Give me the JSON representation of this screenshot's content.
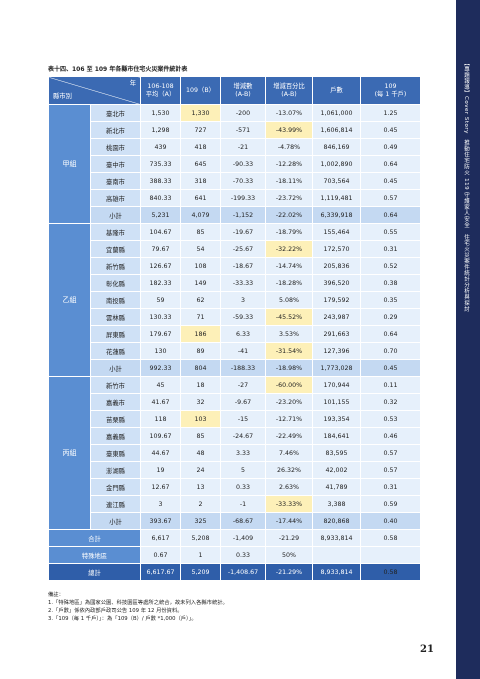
{
  "title": "表十四、106 至 109 年各縣市住宅火災案件統計表",
  "table": {
    "header": {
      "corner_top": "年",
      "corner_bottom": "縣市別",
      "columns": [
        [
          "106-108",
          "平均（A）"
        ],
        [
          "109（B）"
        ],
        [
          "增減數",
          "(A-B)"
        ],
        [
          "增減百分比",
          "(A-B)"
        ],
        [
          "戶數"
        ],
        [
          "109",
          "(每 1 千戶)"
        ]
      ]
    },
    "groups": [
      {
        "name": "甲組",
        "rows": [
          {
            "name": "臺北市",
            "cells": [
              "1,530",
              "1,330",
              "-200",
              "-13.07%",
              "1,061,000",
              "1.25"
            ],
            "highlight": [
              1
            ]
          },
          {
            "name": "新北市",
            "cells": [
              "1,298",
              "727",
              "-571",
              "-43.99%",
              "1,606,814",
              "0.45"
            ],
            "highlight": [
              3
            ]
          },
          {
            "name": "桃園市",
            "cells": [
              "439",
              "418",
              "-21",
              "-4.78%",
              "846,169",
              "0.49"
            ],
            "highlight": []
          },
          {
            "name": "臺中市",
            "cells": [
              "735.33",
              "645",
              "-90.33",
              "-12.28%",
              "1,002,890",
              "0.64"
            ],
            "highlight": []
          },
          {
            "name": "臺南市",
            "cells": [
              "388.33",
              "318",
              "-70.33",
              "-18.11%",
              "703,564",
              "0.45"
            ],
            "highlight": []
          },
          {
            "name": "高雄市",
            "cells": [
              "840.33",
              "641",
              "-199.33",
              "-23.72%",
              "1,119,481",
              "0.57"
            ],
            "highlight": []
          },
          {
            "name": "小計",
            "cells": [
              "5,231",
              "4,079",
              "-1,152",
              "-22.02%",
              "6,339,918",
              "0.64"
            ],
            "highlight": []
          }
        ]
      },
      {
        "name": "乙組",
        "rows": [
          {
            "name": "基隆市",
            "cells": [
              "104.67",
              "85",
              "-19.67",
              "-18.79%",
              "155,464",
              "0.55"
            ],
            "highlight": []
          },
          {
            "name": "宜蘭縣",
            "cells": [
              "79.67",
              "54",
              "-25.67",
              "-32.22%",
              "172,570",
              "0.31"
            ],
            "highlight": [
              3
            ]
          },
          {
            "name": "新竹縣",
            "cells": [
              "126.67",
              "108",
              "-18.67",
              "-14.74%",
              "205,836",
              "0.52"
            ],
            "highlight": []
          },
          {
            "name": "彰化縣",
            "cells": [
              "182.33",
              "149",
              "-33.33",
              "-18.28%",
              "396,520",
              "0.38"
            ],
            "highlight": []
          },
          {
            "name": "南投縣",
            "cells": [
              "59",
              "62",
              "3",
              "5.08%",
              "179,592",
              "0.35"
            ],
            "highlight": []
          },
          {
            "name": "雲林縣",
            "cells": [
              "130.33",
              "71",
              "-59.33",
              "-45.52%",
              "243,987",
              "0.29"
            ],
            "highlight": [
              3
            ]
          },
          {
            "name": "屏東縣",
            "cells": [
              "179.67",
              "186",
              "6.33",
              "3.53%",
              "291,663",
              "0.64"
            ],
            "highlight": [
              1
            ]
          },
          {
            "name": "花蓮縣",
            "cells": [
              "130",
              "89",
              "-41",
              "-31.54%",
              "127,396",
              "0.70"
            ],
            "highlight": [
              3
            ]
          },
          {
            "name": "小計",
            "cells": [
              "992.33",
              "804",
              "-188.33",
              "-18.98%",
              "1,773,028",
              "0.45"
            ],
            "highlight": []
          }
        ]
      },
      {
        "name": "丙組",
        "rows": [
          {
            "name": "新竹市",
            "cells": [
              "45",
              "18",
              "-27",
              "-60.00%",
              "170,944",
              "0.11"
            ],
            "highlight": [
              3
            ]
          },
          {
            "name": "嘉義市",
            "cells": [
              "41.67",
              "32",
              "-9.67",
              "-23.20%",
              "101,155",
              "0.32"
            ],
            "highlight": []
          },
          {
            "name": "苗栗縣",
            "cells": [
              "118",
              "103",
              "-15",
              "-12.71%",
              "193,354",
              "0.53"
            ],
            "highlight": [
              1
            ]
          },
          {
            "name": "嘉義縣",
            "cells": [
              "109.67",
              "85",
              "-24.67",
              "-22.49%",
              "184,641",
              "0.46"
            ],
            "highlight": []
          },
          {
            "name": "臺東縣",
            "cells": [
              "44.67",
              "48",
              "3.33",
              "7.46%",
              "83,595",
              "0.57"
            ],
            "highlight": []
          },
          {
            "name": "澎湖縣",
            "cells": [
              "19",
              "24",
              "5",
              "26.32%",
              "42,002",
              "0.57"
            ],
            "highlight": []
          },
          {
            "name": "金門縣",
            "cells": [
              "12.67",
              "13",
              "0.33",
              "2.63%",
              "41,789",
              "0.31"
            ],
            "highlight": []
          },
          {
            "name": "連江縣",
            "cells": [
              "3",
              "2",
              "-1",
              "-33.33%",
              "3,388",
              "0.59"
            ],
            "highlight": [
              3
            ]
          },
          {
            "name": "小計",
            "cells": [
              "393.67",
              "325",
              "-68.67",
              "-17.44%",
              "820,868",
              "0.40"
            ],
            "highlight": []
          }
        ]
      }
    ],
    "totals": [
      {
        "name": "合計",
        "cells": [
          "6,617",
          "5,208",
          "-1,409",
          "-21.29",
          "8,933,814",
          "0.58"
        ],
        "highlight": []
      },
      {
        "name": "特殊地區",
        "cells": [
          "0.67",
          "1",
          "0.33",
          "50%"
        ],
        "highlight": []
      },
      {
        "name": "總計",
        "cells": [
          "6,617.67",
          "5,209",
          "-1,408.67",
          "-21.29%",
          "8,933,814",
          "0.58"
        ],
        "highlight": [
          5
        ]
      }
    ]
  },
  "notes": {
    "heading": "備註：",
    "items": [
      "1.「特殊地區」為國家公園、科技園區等處所之統合，故未列入各縣市統計。",
      "2.「戶數」係依內政部戶政司公告 109 年 12 月份資料。",
      "3.「109（每 1 千戶）」：為「109（B）/ 戶數 *1,000（戶）」。"
    ]
  },
  "sidebar": "【專題報導】Cover Story　推動住宅防火 119 守護家人安全　住宅火災案件統計分析與探討",
  "page_number": "21"
}
